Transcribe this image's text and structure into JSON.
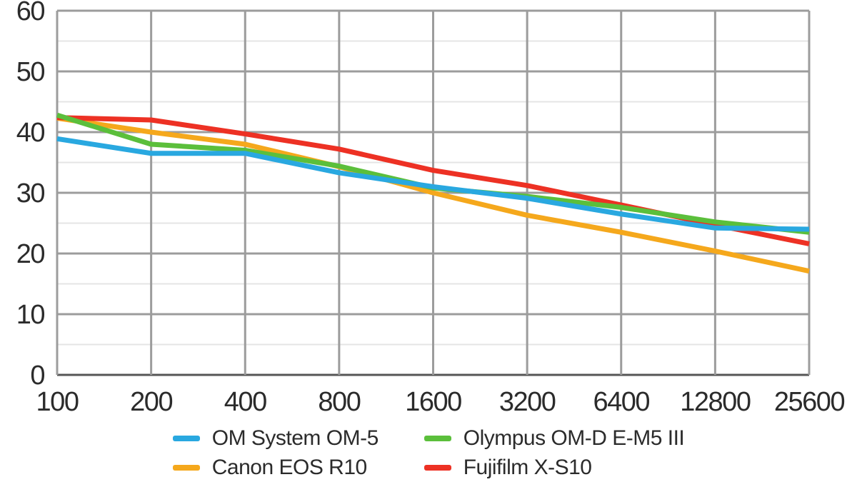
{
  "chart_data": {
    "type": "line",
    "title": "",
    "xlabel": "",
    "ylabel": "",
    "x_axis": {
      "labels": [
        "100",
        "200",
        "400",
        "800",
        "1600",
        "3200",
        "6400",
        "12800",
        "25600"
      ],
      "scale": "log2-categorical"
    },
    "y_axis": {
      "ticks": [
        0,
        10,
        20,
        30,
        40,
        50,
        60
      ],
      "minor_ticks": [
        5,
        15,
        25,
        35,
        45,
        55
      ],
      "range": [
        0,
        60
      ]
    },
    "grid": {
      "major_color": "#9c9c9c",
      "minor_color": "#e5e5e5",
      "bottom_axis_color": "#555555",
      "background": "#ffffff",
      "major_on": true,
      "minor_on": true
    },
    "text_color": "#2b2b2b",
    "line_width": 7,
    "draw_order": [
      2,
      3,
      1,
      0
    ],
    "legend_position": "bottom",
    "series": [
      {
        "name": "OM System OM-5",
        "color": "#29A8E0",
        "values": [
          38.9,
          36.5,
          36.5,
          33.3,
          31.0,
          29.1,
          26.5,
          24.2,
          24.0
        ]
      },
      {
        "name": "Olympus OM-D E-M5 III",
        "color": "#5BBF3B",
        "values": [
          42.8,
          38.0,
          37.0,
          34.4,
          30.8,
          29.4,
          27.6,
          25.2,
          23.5
        ]
      },
      {
        "name": "Canon EOS R10",
        "color": "#F5A81C",
        "values": [
          42.3,
          40.0,
          38.0,
          34.3,
          30.0,
          26.3,
          23.5,
          20.4,
          17.1
        ]
      },
      {
        "name": "Fujifilm X-S10",
        "color": "#ED3124",
        "values": [
          42.4,
          42.0,
          39.7,
          37.2,
          33.7,
          31.2,
          28.0,
          24.7,
          21.6
        ]
      }
    ]
  }
}
